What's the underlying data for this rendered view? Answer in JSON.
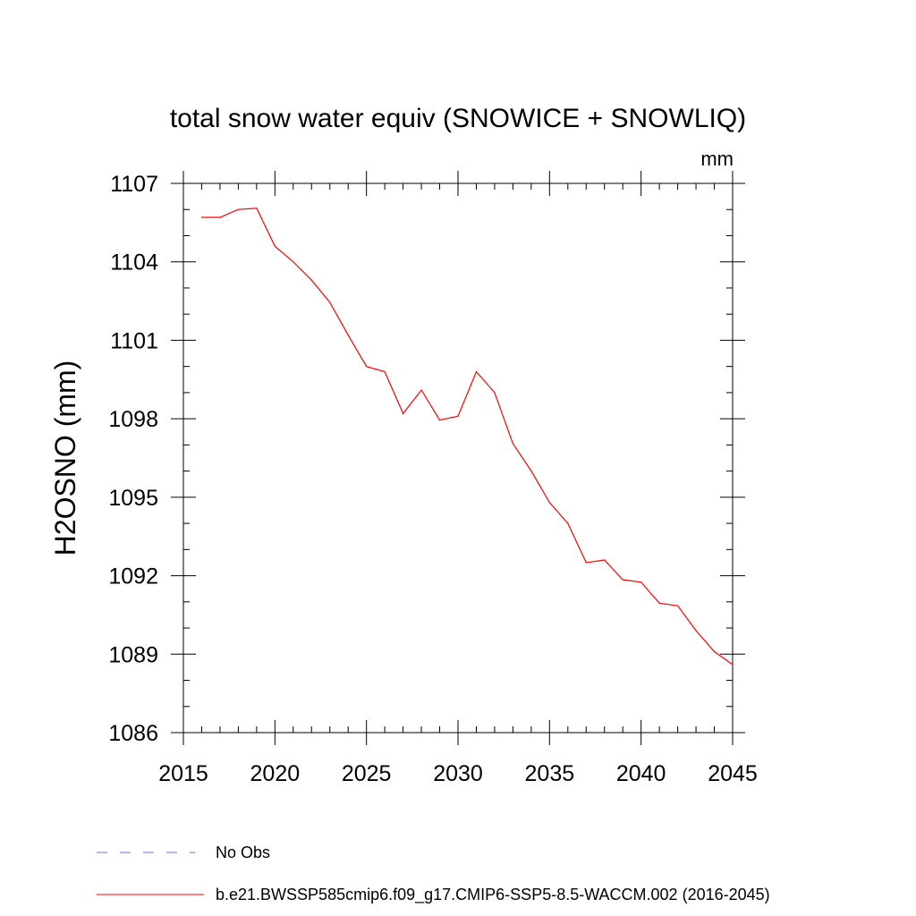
{
  "chart_data": {
    "type": "line",
    "title": "total snow water equiv (SNOWICE + SNOWLIQ)",
    "units": "mm",
    "ylabel": "H2OSNO  (mm)",
    "xlabel": "",
    "xlim": [
      2015,
      2045
    ],
    "ylim": [
      1086,
      1107
    ],
    "x_ticks": [
      2015,
      2020,
      2025,
      2030,
      2035,
      2040,
      2045
    ],
    "x_tick_labels": [
      "2015",
      "2020",
      "2025",
      "2030",
      "2035",
      "2040",
      "2045"
    ],
    "y_ticks": [
      1086,
      1089,
      1092,
      1095,
      1098,
      1101,
      1104,
      1107
    ],
    "y_tick_labels": [
      "1086",
      "1089",
      "1092",
      "1095",
      "1098",
      "1101",
      "1104",
      "1107"
    ],
    "x_minor_step": 1,
    "y_minor_step": 1,
    "grid": false,
    "legend_position": "bottom",
    "series": [
      {
        "name": "b.e21.BWSSP585cmip6.f09_g17.CMIP6-SSP5-8.5-WACCM.002 (2016-2045)",
        "color": "#ff0000",
        "style": "solid",
        "x": [
          2016,
          2017,
          2018,
          2019,
          2020,
          2021,
          2022,
          2023,
          2024,
          2025,
          2026,
          2027,
          2028,
          2029,
          2030,
          2031,
          2032,
          2033,
          2034,
          2035,
          2036,
          2037,
          2038,
          2039,
          2040,
          2041,
          2042,
          2043,
          2044,
          2045
        ],
        "values": [
          1105.7,
          1105.7,
          1106.0,
          1106.05,
          1104.6,
          1104.0,
          1103.3,
          1102.45,
          1101.2,
          1100.0,
          1099.8,
          1098.2,
          1099.1,
          1097.95,
          1098.1,
          1099.8,
          1099.0,
          1097.05,
          1096.0,
          1094.8,
          1094.0,
          1092.5,
          1092.6,
          1091.85,
          1091.75,
          1090.95,
          1090.85,
          1089.9,
          1089.1,
          1088.6
        ]
      }
    ],
    "legend": [
      {
        "label": "No Obs",
        "color": "#7b68c8",
        "style": "dashed"
      },
      {
        "label": "b.e21.BWSSP585cmip6.f09_g17.CMIP6-SSP5-8.5-WACCM.002 (2016-2045)",
        "color": "#ff0000",
        "style": "solid"
      }
    ]
  }
}
